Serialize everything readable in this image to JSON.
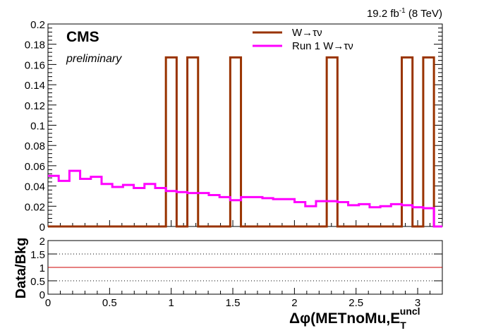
{
  "header": {
    "lumi_value": "19.2 fb",
    "lumi_exp": "-1",
    "lumi_energy": "(8 TeV)",
    "experiment": "CMS",
    "status": "preliminary"
  },
  "colors": {
    "w_tau_nu": "#993300",
    "run1_w_tau_nu": "#ff00ff",
    "ratio_line": "#cc0000"
  },
  "chart_data": [
    {
      "type": "line",
      "panel": "main",
      "xlim": [
        0,
        3.2
      ],
      "ylim": [
        0,
        0.2
      ],
      "yticks": [
        "0",
        "0.02",
        "0.04",
        "0.06",
        "0.08",
        "0.1",
        "0.12",
        "0.14",
        "0.16",
        "0.18",
        "0.2"
      ],
      "ytick_values": [
        0,
        0.02,
        0.04,
        0.06,
        0.08,
        0.1,
        0.12,
        0.14,
        0.16,
        0.18,
        0.2
      ],
      "legend_position": "top-center",
      "bin_edges": [
        0,
        0.087,
        0.174,
        0.261,
        0.348,
        0.435,
        0.522,
        0.609,
        0.696,
        0.783,
        0.87,
        0.957,
        1.044,
        1.131,
        1.218,
        1.305,
        1.392,
        1.479,
        1.566,
        1.653,
        1.74,
        1.827,
        1.914,
        2.001,
        2.088,
        2.175,
        2.262,
        2.349,
        2.436,
        2.523,
        2.61,
        2.697,
        2.784,
        2.871,
        2.958,
        3.045,
        3.132,
        3.219
      ],
      "series": [
        {
          "name": "W→τν",
          "values": [
            0,
            0,
            0,
            0,
            0,
            0,
            0,
            0,
            0,
            0,
            0,
            0.167,
            0,
            0.167,
            0,
            0,
            0,
            0.167,
            0,
            0,
            0,
            0,
            0,
            0,
            0,
            0,
            0.167,
            0,
            0,
            0,
            0,
            0,
            0,
            0.167,
            0,
            0.167,
            0
          ]
        },
        {
          "name": "Run 1 W→τν",
          "values": [
            0.05,
            0.045,
            0.055,
            0.047,
            0.049,
            0.042,
            0.039,
            0.041,
            0.038,
            0.042,
            0.038,
            0.035,
            0.034,
            0.033,
            0.033,
            0.031,
            0.029,
            0.026,
            0.029,
            0.029,
            0.028,
            0.027,
            0.027,
            0.024,
            0.02,
            0.025,
            0.025,
            0.024,
            0.021,
            0.022,
            0.019,
            0.02,
            0.022,
            0.021,
            0.019,
            0.018,
            0.0
          ]
        }
      ]
    },
    {
      "type": "line",
      "panel": "ratio",
      "xlabel": "Δφ(METnoMu,E",
      "xlabel_sub": "T",
      "xlabel_sup": "uncl",
      "ylabel": "Data/Bkg",
      "xlim": [
        0,
        3.2
      ],
      "ylim": [
        0,
        2
      ],
      "xticks": [
        "0",
        "0.5",
        "1",
        "1.5",
        "2",
        "2.5",
        "3"
      ],
      "xtick_values": [
        0,
        0.5,
        1,
        1.5,
        2,
        2.5,
        3
      ],
      "yticks": [
        "0",
        "0.5",
        "1",
        "1.5",
        "2"
      ],
      "ytick_values": [
        0,
        0.5,
        1,
        1.5,
        2
      ],
      "reference_lines": [
        {
          "y": 0.5,
          "style": "dotted"
        },
        {
          "y": 1,
          "style": "solid"
        },
        {
          "y": 1.5,
          "style": "dotted"
        }
      ]
    }
  ]
}
